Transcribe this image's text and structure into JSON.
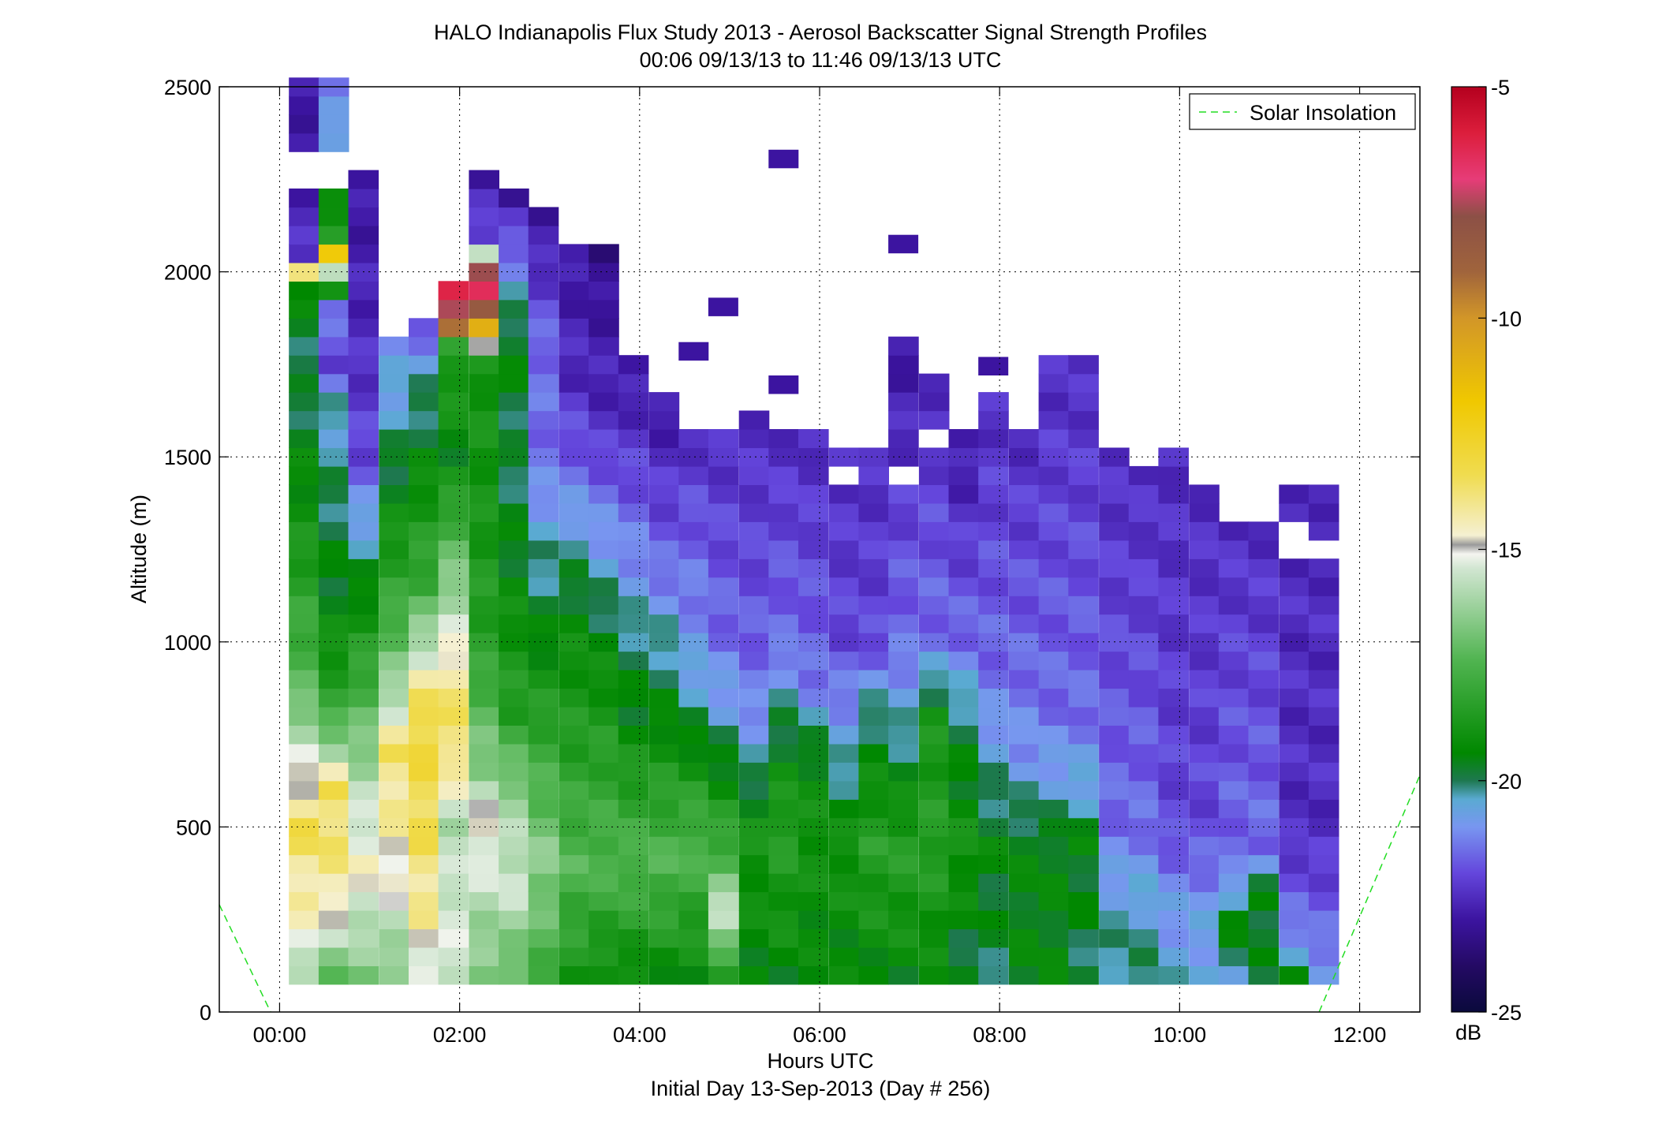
{
  "chart_data": {
    "type": "heatmap",
    "title": "HALO Indianapolis Flux Study 2013 - Aerosol Backscatter Signal Strength Profiles",
    "subtitle": "00:06 09/13/13 to 11:46 09/13/13  UTC",
    "xlabel": "Hours UTC",
    "xlabel2": "Initial Day 13-Sep-2013 (Day # 256)",
    "ylabel": "Altitude (m)",
    "xlim": [
      -0.67,
      12.67
    ],
    "ylim": [
      0,
      2500
    ],
    "x_ticks": [
      "00:00",
      "02:00",
      "04:00",
      "06:00",
      "08:00",
      "10:00",
      "12:00"
    ],
    "x_tick_values": [
      0,
      2,
      4,
      6,
      8,
      10,
      12
    ],
    "y_ticks": [
      "0",
      "500",
      "1000",
      "1500",
      "2000",
      "2500"
    ],
    "y_tick_values": [
      0,
      500,
      1000,
      1500,
      2000,
      2500
    ],
    "grid": true,
    "legend": {
      "entries": [
        "Solar Insolation"
      ],
      "placement": "top-right"
    },
    "colorbar": {
      "label": "dB",
      "range": [
        -25,
        -5
      ],
      "ticks": [
        "-5",
        "-10",
        "-15",
        "-20",
        "-25"
      ],
      "tick_values": [
        -5,
        -10,
        -15,
        -20,
        -25
      ]
    },
    "time_bin_hours": 0.3333,
    "time_start_hours": 0.1,
    "altitude_bin_m": 50,
    "altitude_start_m": 75,
    "columns": [
      {
        "t": 0.27,
        "top": 2500,
        "p": [
          [
            75,
            -16.5
          ],
          [
            200,
            -15
          ],
          [
            500,
            -13.8
          ],
          [
            700,
            -15.5
          ],
          [
            900,
            -17.5
          ],
          [
            1300,
            -19
          ],
          [
            1700,
            -20
          ],
          [
            1950,
            -19.5
          ],
          [
            2000,
            -13.8
          ],
          [
            2050,
            -22.5
          ],
          [
            2500,
            -23
          ]
        ]
      },
      {
        "t": 0.6,
        "top": 2500,
        "p": [
          [
            75,
            -17.5
          ],
          [
            300,
            -14.5
          ],
          [
            600,
            -13.8
          ],
          [
            700,
            -16
          ],
          [
            850,
            -18.5
          ],
          [
            1100,
            -19.5
          ],
          [
            1400,
            -20
          ],
          [
            1650,
            -20.5
          ],
          [
            1750,
            -22
          ],
          [
            1900,
            -21.5
          ],
          [
            2050,
            -13
          ],
          [
            2100,
            -18.5
          ],
          [
            2500,
            -21.5
          ]
        ]
      },
      {
        "t": 0.93,
        "top": 2230,
        "p": [
          [
            75,
            -17
          ],
          [
            400,
            -14.8
          ],
          [
            700,
            -16.5
          ],
          [
            900,
            -18
          ],
          [
            1300,
            -20.5
          ],
          [
            1500,
            -22
          ],
          [
            1800,
            -22.5
          ],
          [
            2230,
            -23
          ]
        ]
      },
      {
        "t": 1.27,
        "top": 1800,
        "p": [
          [
            75,
            -17
          ],
          [
            350,
            -15
          ],
          [
            700,
            -14
          ],
          [
            900,
            -16.5
          ],
          [
            1100,
            -18
          ],
          [
            1400,
            -19.5
          ],
          [
            1650,
            -20.5
          ],
          [
            1800,
            -21
          ]
        ]
      },
      {
        "t": 1.6,
        "top": 1850,
        "p": [
          [
            75,
            -15.5
          ],
          [
            250,
            -14.5
          ],
          [
            500,
            -13.8
          ],
          [
            800,
            -13.5
          ],
          [
            950,
            -15.3
          ],
          [
            1150,
            -18
          ],
          [
            1500,
            -19.5
          ],
          [
            1750,
            -20.5
          ],
          [
            1850,
            -22
          ]
        ]
      },
      {
        "t": 1.93,
        "top": 1950,
        "p": [
          [
            75,
            -15.5
          ],
          [
            300,
            -15.5
          ],
          [
            500,
            -16
          ],
          [
            700,
            -14
          ],
          [
            900,
            -14.2
          ],
          [
            1100,
            -16
          ],
          [
            1500,
            -19.5
          ],
          [
            1800,
            -18.5
          ],
          [
            1850,
            -10.5
          ],
          [
            1950,
            -6
          ]
        ]
      },
      {
        "t": 2.27,
        "top": 2260,
        "p": [
          [
            75,
            -17
          ],
          [
            300,
            -16
          ],
          [
            500,
            -14.8
          ],
          [
            650,
            -16.5
          ],
          [
            1000,
            -18.5
          ],
          [
            1400,
            -19
          ],
          [
            1750,
            -19
          ],
          [
            1850,
            -11.5
          ],
          [
            1950,
            -7
          ],
          [
            2000,
            -9
          ],
          [
            2100,
            -22
          ],
          [
            2260,
            -23
          ]
        ]
      },
      {
        "t": 2.6,
        "top": 2200,
        "p": [
          [
            75,
            -17.5
          ],
          [
            350,
            -15.5
          ],
          [
            600,
            -16.5
          ],
          [
            800,
            -18.5
          ],
          [
            1200,
            -19.5
          ],
          [
            1500,
            -20
          ],
          [
            1800,
            -19.5
          ],
          [
            1950,
            -20.5
          ],
          [
            2050,
            -21.5
          ],
          [
            2200,
            -23
          ]
        ]
      },
      {
        "t": 2.93,
        "top": 2130,
        "p": [
          [
            75,
            -18
          ],
          [
            400,
            -16.5
          ],
          [
            700,
            -18
          ],
          [
            1000,
            -19.5
          ],
          [
            1300,
            -20.5
          ],
          [
            1500,
            -21.5
          ],
          [
            1800,
            -21.5
          ],
          [
            2130,
            -23
          ]
        ]
      },
      {
        "t": 3.27,
        "top": 2070,
        "p": [
          [
            75,
            -19
          ],
          [
            400,
            -17.5
          ],
          [
            700,
            -18.5
          ],
          [
            1100,
            -19.5
          ],
          [
            1300,
            -20.5
          ],
          [
            1450,
            -21.5
          ],
          [
            1700,
            -22.5
          ],
          [
            2070,
            -23
          ]
        ]
      },
      {
        "t": 3.6,
        "top": 2070,
        "p": [
          [
            75,
            -19.5
          ],
          [
            400,
            -17.5
          ],
          [
            700,
            -18.5
          ],
          [
            1000,
            -19.5
          ],
          [
            1200,
            -20.5
          ],
          [
            1400,
            -21.5
          ],
          [
            1600,
            -22.5
          ],
          [
            1900,
            -23
          ],
          [
            2070,
            -23.5
          ]
        ]
      },
      {
        "t": 3.93,
        "top": 1750,
        "p": [
          [
            75,
            -19.5
          ],
          [
            400,
            -17.5
          ],
          [
            800,
            -19.5
          ],
          [
            1000,
            -20
          ],
          [
            1200,
            -21
          ],
          [
            1450,
            -22
          ],
          [
            1750,
            -23
          ]
        ]
      },
      {
        "t": 4.27,
        "top": 1670,
        "p": [
          [
            75,
            -19.5
          ],
          [
            400,
            -17.5
          ],
          [
            800,
            -19.5
          ],
          [
            1050,
            -20.5
          ],
          [
            1200,
            -21.5
          ],
          [
            1500,
            -22.5
          ],
          [
            1670,
            -23
          ]
        ]
      },
      {
        "t": 4.6,
        "top": 1570,
        "p": [
          [
            75,
            -19.5
          ],
          [
            450,
            -17.5
          ],
          [
            800,
            -20
          ],
          [
            1000,
            -21
          ],
          [
            1200,
            -21.5
          ],
          [
            1570,
            -22.5
          ]
        ]
      },
      {
        "t": 4.93,
        "top": 1570,
        "p": [
          [
            75,
            -19.5
          ],
          [
            250,
            -15.5
          ],
          [
            450,
            -18
          ],
          [
            800,
            -20.5
          ],
          [
            1000,
            -21.5
          ],
          [
            1570,
            -22.5
          ]
        ]
      },
      {
        "t": 5.27,
        "top": 1620,
        "p": [
          [
            75,
            -19.5
          ],
          [
            500,
            -19
          ],
          [
            700,
            -20.5
          ],
          [
            900,
            -21.5
          ],
          [
            1200,
            -22
          ],
          [
            1620,
            -22.5
          ]
        ]
      },
      {
        "t": 5.6,
        "top": 1570,
        "p": [
          [
            75,
            -19.5
          ],
          [
            500,
            -18.5
          ],
          [
            800,
            -20
          ],
          [
            1000,
            -21.5
          ],
          [
            1570,
            -22.5
          ]
        ]
      },
      {
        "t": 5.93,
        "top": 1550,
        "p": [
          [
            75,
            -19.5
          ],
          [
            500,
            -19
          ],
          [
            700,
            -19.5
          ],
          [
            900,
            -21.5
          ],
          [
            1550,
            -22.5
          ]
        ]
      },
      {
        "t": 6.27,
        "top": 1520,
        "p": [
          [
            75,
            -19.5
          ],
          [
            450,
            -19
          ],
          [
            700,
            -20.5
          ],
          [
            1000,
            -22
          ],
          [
            1520,
            -22.5
          ]
        ]
      },
      {
        "t": 6.6,
        "top": 1520,
        "p": [
          [
            75,
            -19.5
          ],
          [
            450,
            -18.5
          ],
          [
            800,
            -20
          ],
          [
            1000,
            -22
          ],
          [
            1520,
            -22.5
          ]
        ]
      },
      {
        "t": 6.93,
        "top": 1800,
        "p": [
          [
            75,
            -19.5
          ],
          [
            450,
            -18.5
          ],
          [
            800,
            -20.5
          ],
          [
            1000,
            -21.5
          ],
          [
            1300,
            -22
          ],
          [
            1800,
            -23
          ]
        ]
      },
      {
        "t": 7.27,
        "top": 1700,
        "p": [
          [
            75,
            -19.5
          ],
          [
            450,
            -18.5
          ],
          [
            800,
            -19
          ],
          [
            1000,
            -21.5
          ],
          [
            1700,
            -22.5
          ]
        ]
      },
      {
        "t": 7.6,
        "top": 1570,
        "p": [
          [
            75,
            -20
          ],
          [
            450,
            -19
          ],
          [
            800,
            -20
          ],
          [
            1000,
            -21.5
          ],
          [
            1570,
            -23
          ]
        ]
      },
      {
        "t": 7.93,
        "top": 1670,
        "p": [
          [
            75,
            -20
          ],
          [
            450,
            -19.5
          ],
          [
            700,
            -20.5
          ],
          [
            900,
            -21.5
          ],
          [
            1670,
            -22.5
          ]
        ]
      },
      {
        "t": 8.27,
        "top": 1570,
        "p": [
          [
            75,
            -19.5
          ],
          [
            450,
            -19.5
          ],
          [
            700,
            -21
          ],
          [
            900,
            -21.5
          ],
          [
            1570,
            -22.5
          ]
        ]
      },
      {
        "t": 8.6,
        "top": 1770,
        "p": [
          [
            75,
            -19.5
          ],
          [
            450,
            -19.5
          ],
          [
            600,
            -20.5
          ],
          [
            800,
            -21.5
          ],
          [
            1770,
            -22.5
          ]
        ]
      },
      {
        "t": 8.93,
        "top": 1770,
        "p": [
          [
            75,
            -20
          ],
          [
            450,
            -19.5
          ],
          [
            600,
            -20.5
          ],
          [
            800,
            -21.5
          ],
          [
            1770,
            -22.5
          ]
        ]
      },
      {
        "t": 9.27,
        "top": 1520,
        "p": [
          [
            75,
            -20
          ],
          [
            300,
            -20.5
          ],
          [
            500,
            -21.5
          ],
          [
            1520,
            -22.5
          ]
        ]
      },
      {
        "t": 9.6,
        "top": 1470,
        "p": [
          [
            75,
            -20
          ],
          [
            300,
            -20.5
          ],
          [
            500,
            -21.5
          ],
          [
            1470,
            -22.5
          ]
        ]
      },
      {
        "t": 9.93,
        "top": 1520,
        "p": [
          [
            75,
            -20.5
          ],
          [
            300,
            -21
          ],
          [
            500,
            -22
          ],
          [
            1520,
            -22.5
          ]
        ]
      },
      {
        "t": 10.27,
        "top": 1420,
        "p": [
          [
            75,
            -20.5
          ],
          [
            300,
            -21
          ],
          [
            500,
            -22
          ],
          [
            1420,
            -22.5
          ]
        ]
      },
      {
        "t": 10.6,
        "top": 1350,
        "p": [
          [
            75,
            -20.5
          ],
          [
            250,
            -19.5
          ],
          [
            400,
            -21.5
          ],
          [
            1350,
            -22.5
          ]
        ]
      },
      {
        "t": 10.93,
        "top": 1320,
        "p": [
          [
            75,
            -20
          ],
          [
            300,
            -19.5
          ],
          [
            450,
            -21.5
          ],
          [
            1320,
            -22.5
          ]
        ]
      },
      {
        "t": 11.27,
        "top": 1400,
        "p": [
          [
            75,
            -19.5
          ],
          [
            250,
            -21.5
          ],
          [
            500,
            -22.5
          ],
          [
            1200,
            -22.5
          ]
        ]
      },
      {
        "t": 11.6,
        "top": 1420,
        "p": [
          [
            75,
            -20.5
          ],
          [
            200,
            -21.5
          ],
          [
            500,
            -22.5
          ],
          [
            1420,
            -22.5
          ]
        ]
      }
    ],
    "gaps": [
      {
        "t": 0.27,
        "y0": 2200,
        "y1": 2300
      },
      {
        "t": 0.6,
        "y0": 2200,
        "y1": 2300
      },
      {
        "t": 11.27,
        "y0": 1200,
        "y1": 1300
      },
      {
        "t": 11.6,
        "y0": 1200,
        "y1": 1260
      },
      {
        "t": 6.27,
        "y0": 1420,
        "y1": 1470
      },
      {
        "t": 6.93,
        "y0": 1420,
        "y1": 1470
      },
      {
        "t": 7.27,
        "y0": 1500,
        "y1": 1550
      },
      {
        "t": 7.6,
        "y0": 1600,
        "y1": 1700
      },
      {
        "t": 4.6,
        "y0": 1620,
        "y1": 1700
      },
      {
        "t": 10.6,
        "y0": 1320,
        "y1": 1370
      }
    ],
    "isolated_cells": [
      {
        "t": 5.6,
        "y": 2280,
        "v": -23
      },
      {
        "t": 6.93,
        "y": 2050,
        "v": -23
      },
      {
        "t": 4.93,
        "y": 1880,
        "v": -23
      },
      {
        "t": 4.6,
        "y": 1760,
        "v": -23
      },
      {
        "t": 5.6,
        "y": 1670,
        "v": -23
      },
      {
        "t": 7.93,
        "y": 1720,
        "v": -23
      }
    ],
    "solar_insolation": {
      "left": [
        [
          -0.67,
          290
        ],
        [
          -0.1,
          0
        ]
      ],
      "right": [
        [
          11.55,
          0
        ],
        [
          12.67,
          640
        ]
      ]
    }
  }
}
